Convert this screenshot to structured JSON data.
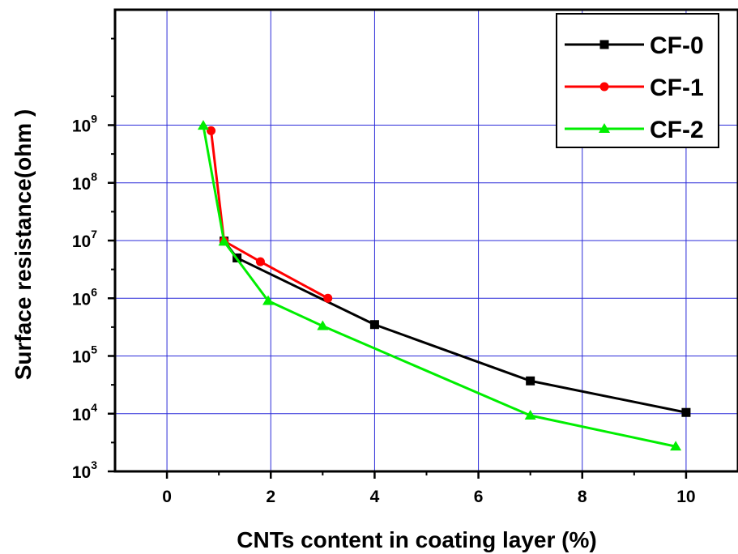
{
  "chart_data": {
    "type": "line",
    "title": "",
    "xlabel": "CNTs content in coating layer (%)",
    "ylabel": "Surface resistance(ohm )",
    "xlim": [
      -1,
      11
    ],
    "ylim": [
      1000,
      100000000000
    ],
    "yscale": "log",
    "grid": true,
    "legend_position": "top-right",
    "x_ticks": [
      0,
      2,
      4,
      6,
      8,
      10
    ],
    "x_tick_labels": [
      "0",
      "2",
      "4",
      "6",
      "8",
      "10"
    ],
    "y_ticks": [
      {
        "value": 1000,
        "base": "10",
        "exp": "3"
      },
      {
        "value": 10000,
        "base": "10",
        "exp": "4"
      },
      {
        "value": 100000,
        "base": "10",
        "exp": "5"
      },
      {
        "value": 1000000,
        "base": "10",
        "exp": "6"
      },
      {
        "value": 10000000,
        "base": "10",
        "exp": "7"
      },
      {
        "value": 100000000,
        "base": "10",
        "exp": "8"
      },
      {
        "value": 1000000000,
        "base": "10",
        "exp": "9"
      }
    ],
    "series": [
      {
        "name": "CF-0",
        "color": "#000000",
        "marker": "square",
        "points": [
          [
            1.1,
            9800000
          ],
          [
            1.35,
            5000000
          ],
          [
            4.0,
            350000
          ],
          [
            7.0,
            37000
          ],
          [
            10.0,
            10500
          ]
        ]
      },
      {
        "name": "CF-1",
        "color": "#ff0000",
        "marker": "circle",
        "points": [
          [
            0.85,
            800000000
          ],
          [
            1.1,
            9800000
          ],
          [
            1.8,
            4300000
          ],
          [
            3.1,
            1000000
          ]
        ]
      },
      {
        "name": "CF-2",
        "color": "#00ee00",
        "marker": "triangle",
        "points": [
          [
            0.7,
            980000000
          ],
          [
            1.1,
            9600000
          ],
          [
            1.95,
            900000
          ],
          [
            3.0,
            330000
          ],
          [
            7.0,
            9300
          ],
          [
            9.8,
            2700
          ]
        ]
      }
    ]
  }
}
